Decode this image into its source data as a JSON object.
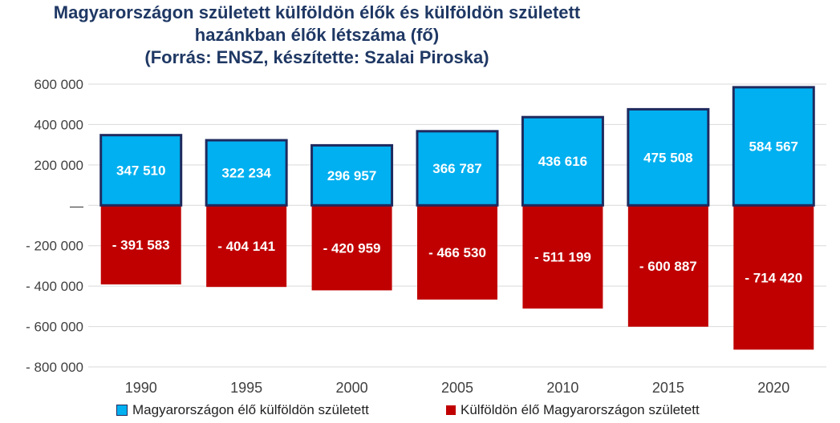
{
  "title": {
    "line1": "Magyarországon született külföldön élők és külföldön született",
    "line2": "hazánkban élők létszáma (fő)",
    "line3": "(Forrás: ENSZ, készítette: Szalai Piroska)"
  },
  "colors": {
    "positive_fill": "#00b0f0",
    "positive_stroke": "#1f2a5e",
    "negative_fill": "#c00000",
    "grid": "#d9d9d9",
    "axis_text": "#404040",
    "title": "#1f3864"
  },
  "chart_data": {
    "type": "bar",
    "categories": [
      "1990",
      "1995",
      "2000",
      "2005",
      "2010",
      "2015",
      "2020"
    ],
    "series": [
      {
        "name": "Magyarországon élő külföldön született",
        "values": [
          347510,
          322234,
          296957,
          366787,
          436616,
          475508,
          584567
        ],
        "labels": [
          "347 510",
          "322 234",
          "296 957",
          "366 787",
          "436 616",
          "475 508",
          "584 567"
        ]
      },
      {
        "name": "Külföldön élő Magyarországon született",
        "values": [
          -391583,
          -404141,
          -420959,
          -466530,
          -511199,
          -600887,
          -714420
        ],
        "labels": [
          "- 391 583",
          "- 404 141",
          "- 420 959",
          "- 466 530",
          "- 511 199",
          "- 600 887",
          "- 714 420"
        ]
      }
    ],
    "y_ticks": [
      600000,
      400000,
      200000,
      0,
      -200000,
      -400000,
      -600000,
      -800000
    ],
    "y_tick_labels": [
      "600 000",
      "400 000",
      "200 000",
      "—",
      "- 200 000",
      "- 400 000",
      "- 600 000",
      "- 800 000"
    ],
    "ylim": [
      -800000,
      600000
    ],
    "grid": true,
    "stacked": true,
    "legend_position": "bottom"
  }
}
